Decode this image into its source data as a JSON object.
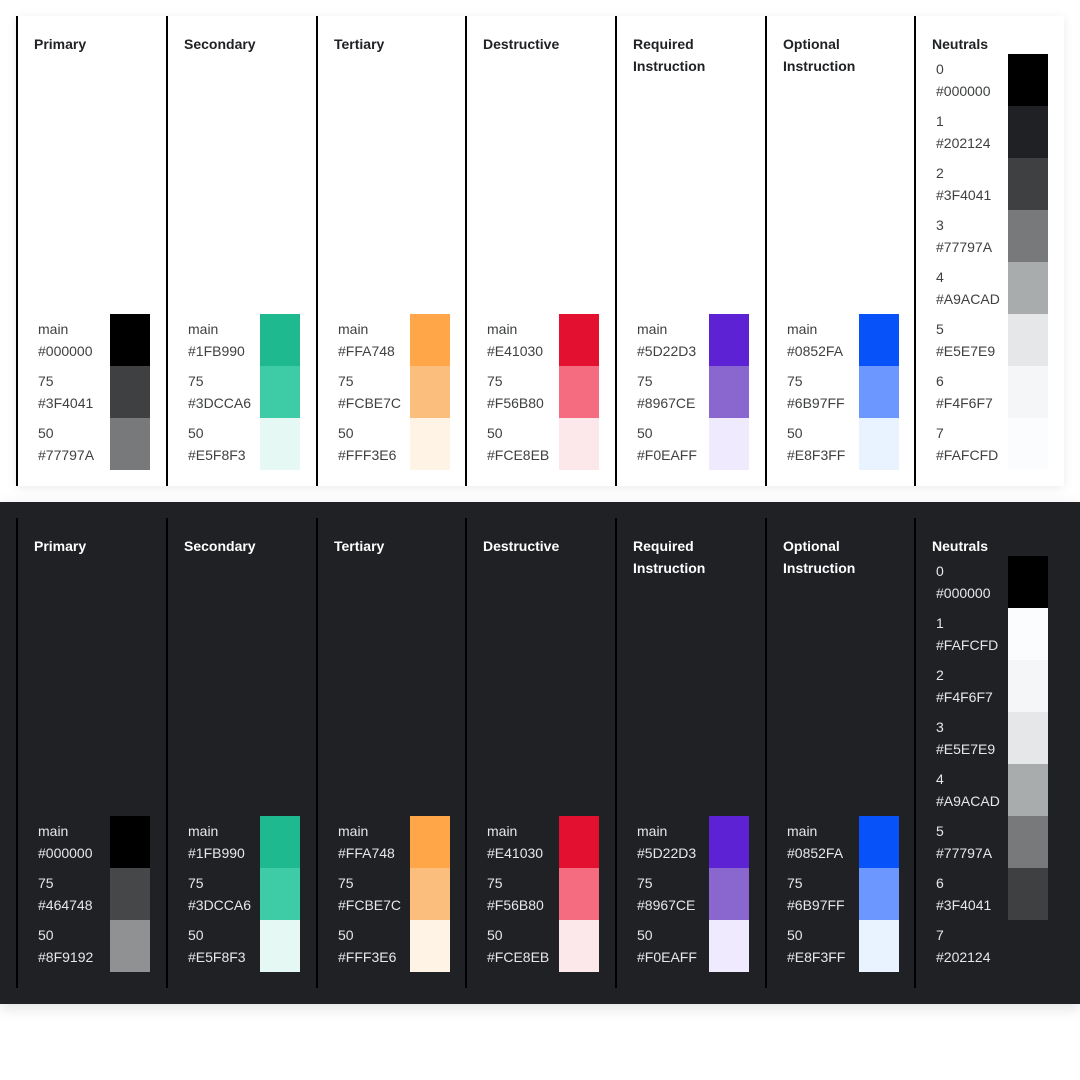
{
  "themes": [
    {
      "id": "light",
      "columns": [
        {
          "title": "Primary",
          "swatches": [
            {
              "label": "main",
              "hex": "#000000"
            },
            {
              "label": "75",
              "hex": "#3F4041"
            },
            {
              "label": "50",
              "hex": "#77797A"
            }
          ]
        },
        {
          "title": "Secondary",
          "swatches": [
            {
              "label": "main",
              "hex": "#1FB990"
            },
            {
              "label": "75",
              "hex": "#3DCCA6"
            },
            {
              "label": "50",
              "hex": "#E5F8F3"
            }
          ]
        },
        {
          "title": "Tertiary",
          "swatches": [
            {
              "label": "main",
              "hex": "#FFA748"
            },
            {
              "label": "75",
              "hex": "#FCBE7C"
            },
            {
              "label": "50",
              "hex": "#FFF3E6"
            }
          ]
        },
        {
          "title": "Destructive",
          "swatches": [
            {
              "label": "main",
              "hex": "#E41030"
            },
            {
              "label": "75",
              "hex": "#F56B80"
            },
            {
              "label": "50",
              "hex": "#FCE8EB"
            }
          ]
        },
        {
          "title": "Required Instruction",
          "swatches": [
            {
              "label": "main",
              "hex": "#5D22D3"
            },
            {
              "label": "75",
              "hex": "#8967CE"
            },
            {
              "label": "50",
              "hex": "#F0EAFF"
            }
          ]
        },
        {
          "title": "Optional Instruction",
          "swatches": [
            {
              "label": "main",
              "hex": "#0852FA"
            },
            {
              "label": "75",
              "hex": "#6B97FF"
            },
            {
              "label": "50",
              "hex": "#E8F3FF"
            }
          ]
        }
      ],
      "neutrals": {
        "title": "Neutrals",
        "items": [
          {
            "label": "0",
            "hex": "#000000"
          },
          {
            "label": "1",
            "hex": "#202124"
          },
          {
            "label": "2",
            "hex": "#3F4041"
          },
          {
            "label": "3",
            "hex": "#77797A"
          },
          {
            "label": "4",
            "hex": "#A9ACAD"
          },
          {
            "label": "5",
            "hex": "#E5E7E9"
          },
          {
            "label": "6",
            "hex": "#F4F6F7"
          },
          {
            "label": "7",
            "hex": "#FAFCFD"
          }
        ]
      }
    },
    {
      "id": "dark",
      "columns": [
        {
          "title": "Primary",
          "swatches": [
            {
              "label": "main",
              "hex": "#000000"
            },
            {
              "label": "75",
              "hex": "#464748"
            },
            {
              "label": "50",
              "hex": "#8F9192"
            }
          ]
        },
        {
          "title": "Secondary",
          "swatches": [
            {
              "label": "main",
              "hex": "#1FB990"
            },
            {
              "label": "75",
              "hex": "#3DCCA6"
            },
            {
              "label": "50",
              "hex": "#E5F8F3"
            }
          ]
        },
        {
          "title": "Tertiary",
          "swatches": [
            {
              "label": "main",
              "hex": "#FFA748"
            },
            {
              "label": "75",
              "hex": "#FCBE7C"
            },
            {
              "label": "50",
              "hex": "#FFF3E6"
            }
          ]
        },
        {
          "title": "Destructive",
          "swatches": [
            {
              "label": "main",
              "hex": "#E41030"
            },
            {
              "label": "75",
              "hex": "#F56B80"
            },
            {
              "label": "50",
              "hex": "#FCE8EB"
            }
          ]
        },
        {
          "title": "Required Instruction",
          "swatches": [
            {
              "label": "main",
              "hex": "#5D22D3"
            },
            {
              "label": "75",
              "hex": "#8967CE"
            },
            {
              "label": "50",
              "hex": "#F0EAFF"
            }
          ]
        },
        {
          "title": "Optional Instruction",
          "swatches": [
            {
              "label": "main",
              "hex": "#0852FA"
            },
            {
              "label": "75",
              "hex": "#6B97FF"
            },
            {
              "label": "50",
              "hex": "#E8F3FF"
            }
          ]
        }
      ],
      "neutrals": {
        "title": "Neutrals",
        "items": [
          {
            "label": "0",
            "hex": "#000000"
          },
          {
            "label": "1",
            "hex": "#FAFCFD"
          },
          {
            "label": "2",
            "hex": "#F4F6F7"
          },
          {
            "label": "3",
            "hex": "#E5E7E9"
          },
          {
            "label": "4",
            "hex": "#A9ACAD"
          },
          {
            "label": "5",
            "hex": "#77797A"
          },
          {
            "label": "6",
            "hex": "#3F4041"
          },
          {
            "label": "7",
            "hex": "#202124"
          }
        ]
      }
    }
  ]
}
